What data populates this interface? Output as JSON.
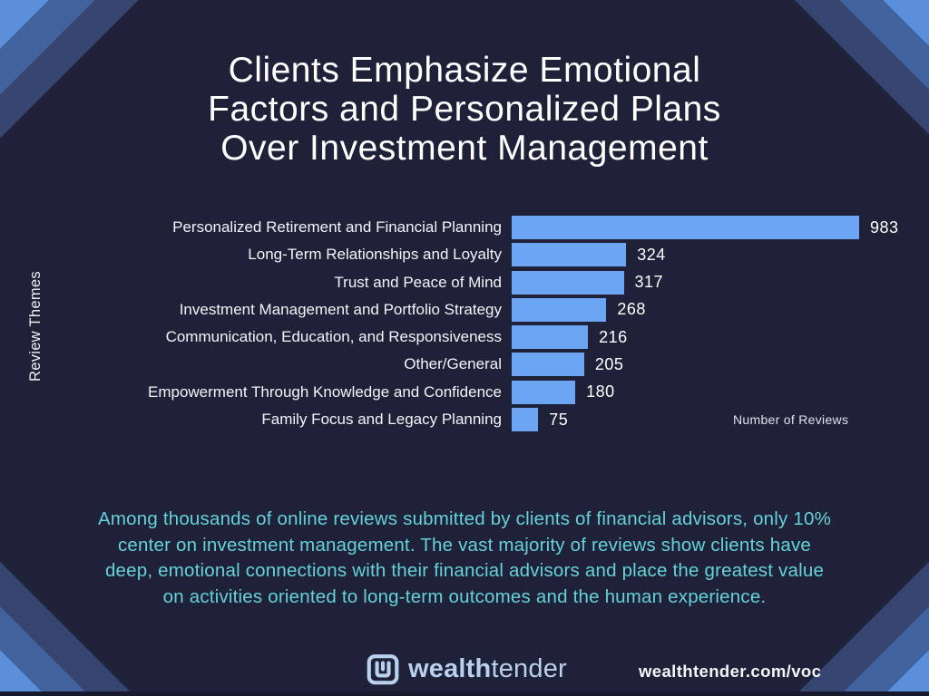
{
  "title": {
    "line1": "Clients Emphasize Emotional",
    "line2": "Factors and Personalized Plans",
    "line3": "Over Investment Management"
  },
  "chart_data": {
    "type": "bar",
    "orientation": "horizontal",
    "categories": [
      "Personalized Retirement and Financial Planning",
      "Long-Term Relationships and Loyalty",
      "Trust and Peace of Mind",
      "Investment Management and Portfolio Strategy",
      "Communication, Education, and Responsiveness",
      "Other/General",
      "Empowerment Through Knowledge and Confidence",
      "Family Focus and Legacy Planning"
    ],
    "values": [
      983,
      324,
      317,
      268,
      216,
      205,
      180,
      75
    ],
    "ylabel": "Review Themes",
    "xlabel": "Number of Reviews",
    "xlim": [
      0,
      1000
    ],
    "data_labels": true,
    "grid": false,
    "legend": false,
    "bar_color": "#6ba5f3"
  },
  "summary": {
    "line1": "Among thousands of online reviews submitted by clients of financial advisors, only 10%",
    "line2": "center on investment management. The vast majority of reviews show clients have",
    "line3": "deep, emotional connections with their financial advisors and place the greatest value",
    "line4": "on activities oriented to long-term outcomes and the human experience."
  },
  "footer": {
    "brand_bold": "wealth",
    "brand_regular": "tender",
    "url": "wealthtender.com/voc"
  },
  "colors": {
    "background": "#1e2138",
    "bar": "#6ba5f3",
    "summary_text": "#65d1d9",
    "brand_text": "#b9d0ee",
    "stripe_light": "#5c8fd9",
    "stripe_medium": "#42629d",
    "stripe_dark": "#354570"
  }
}
